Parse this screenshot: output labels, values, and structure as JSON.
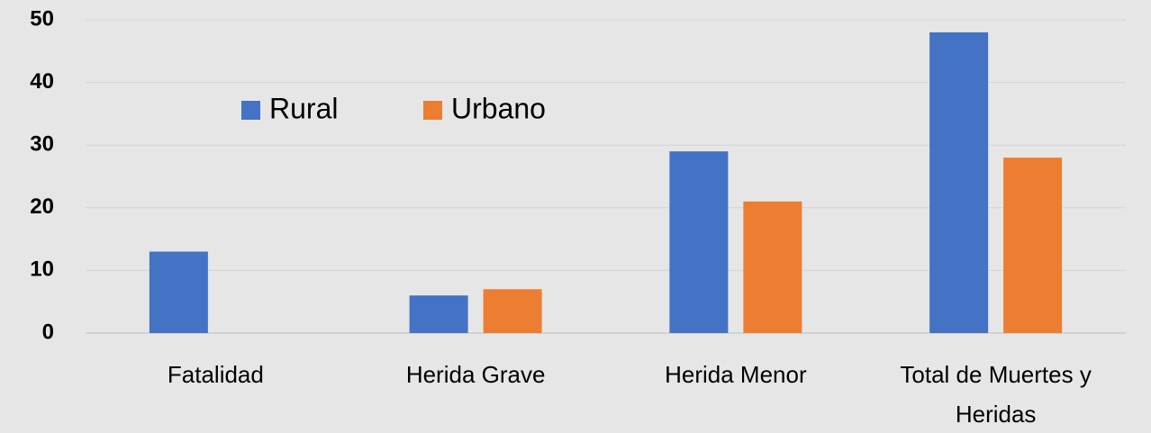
{
  "chart_data": {
    "type": "bar",
    "categories": [
      "Fatalidad",
      "Herida Grave",
      "Herida Menor",
      "Total de Muertes y Heridas"
    ],
    "series": [
      {
        "name": "Rural",
        "color": "#4472c4",
        "values": [
          13,
          6,
          29,
          48
        ]
      },
      {
        "name": "Urbano",
        "color": "#ed7d31",
        "values": [
          0,
          7,
          21,
          28
        ]
      }
    ],
    "ylim": [
      0,
      50
    ],
    "yticks": [
      0,
      10,
      20,
      30,
      40,
      50
    ],
    "grid": true,
    "legend": "top-left"
  }
}
